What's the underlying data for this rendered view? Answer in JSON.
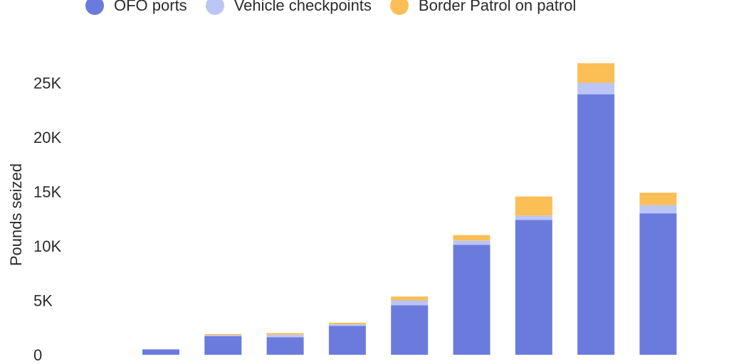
{
  "chart_data": {
    "type": "bar",
    "stacked": true,
    "title": "",
    "xlabel": "",
    "ylabel": "Pounds seized",
    "ylim": [
      0,
      27000
    ],
    "yticks": [
      0,
      5000,
      10000,
      15000,
      20000,
      25000
    ],
    "ytick_labels": [
      "0",
      "5K",
      "10K",
      "15K",
      "20K",
      "25K"
    ],
    "legend_position": "top",
    "categories": [
      "",
      "",
      "",
      "",
      "",
      "",
      "",
      "",
      ""
    ],
    "series": [
      {
        "name": "OFO ports",
        "color": "#6b7bdd",
        "values": [
          500,
          1700,
          1600,
          2650,
          4550,
          10100,
          12400,
          23950,
          13000
        ]
      },
      {
        "name": "Vehicle checkpoints",
        "color": "#bcc6f6",
        "values": [
          0,
          100,
          250,
          150,
          450,
          400,
          400,
          1050,
          750
        ]
      },
      {
        "name": "Border Patrol on patrol",
        "color": "#fbbf56",
        "values": [
          0,
          100,
          150,
          150,
          350,
          500,
          1750,
          1800,
          1150
        ]
      }
    ]
  }
}
